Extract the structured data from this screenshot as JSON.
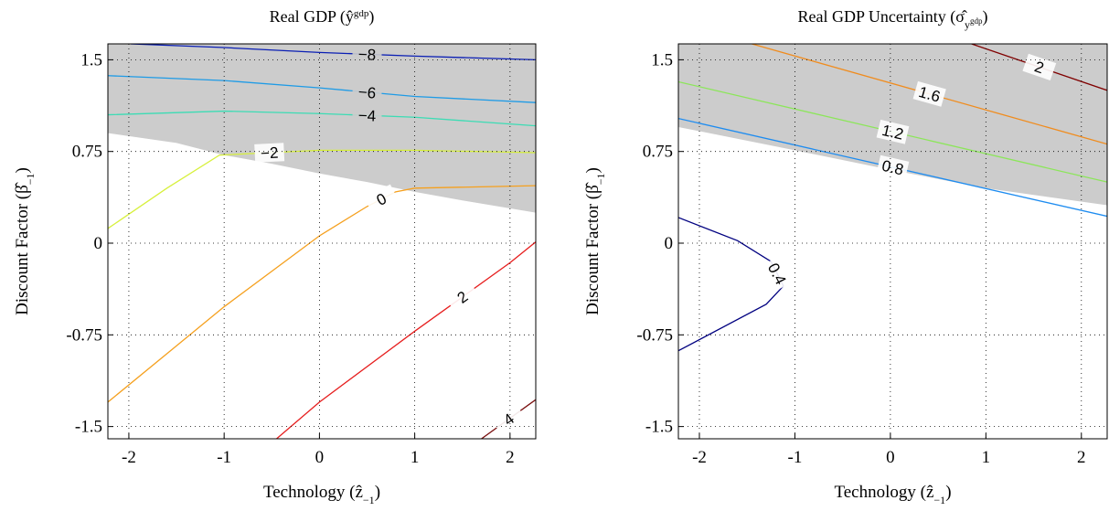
{
  "chart_data": [
    {
      "type": "contour",
      "title": [
        {
          "text": "Real GDP (ŷ"
        },
        {
          "text": "gdp",
          "sup": true
        },
        {
          "text": ")"
        }
      ],
      "xlabel": [
        {
          "text": "Technology (ẑ"
        },
        {
          "text": "−1",
          "sub": true
        },
        {
          "text": ")"
        }
      ],
      "ylabel": [
        {
          "text": "Discount Factor (β̂"
        },
        {
          "text": "−1",
          "sub": true
        },
        {
          "text": ")"
        }
      ],
      "xlim": [
        -2.22,
        2.27
      ],
      "ylim": [
        -1.6,
        1.63
      ],
      "xticks": [
        -2,
        -1,
        0,
        1,
        2
      ],
      "yticks": [
        -1.5,
        -0.75,
        0,
        0.75,
        1.5
      ],
      "grid": true,
      "shade": {
        "color": "#cccccc",
        "x": [
          -2.22,
          -1.5,
          -1,
          -0.5,
          0,
          0.5,
          1,
          1.5,
          2.27
        ],
        "y": [
          0.9,
          0.82,
          0.72,
          0.65,
          0.57,
          0.5,
          0.42,
          0.35,
          0.25
        ]
      },
      "series": [
        {
          "level": -8,
          "label": "−8",
          "color": "#0a1eb4",
          "x": [
            -1.98,
            -1,
            0,
            1,
            2.27
          ],
          "y": [
            1.63,
            1.6,
            1.56,
            1.53,
            1.5
          ]
        },
        {
          "level": -6,
          "label": "−6",
          "color": "#1e9be6",
          "x": [
            -2.22,
            -1,
            0,
            1,
            2.27
          ],
          "y": [
            1.37,
            1.33,
            1.27,
            1.2,
            1.15
          ]
        },
        {
          "level": -4,
          "label": "−4",
          "color": "#3cdcb4",
          "x": [
            -2.22,
            -1,
            0,
            1,
            2.27
          ],
          "y": [
            1.05,
            1.08,
            1.06,
            1.03,
            0.96
          ]
        },
        {
          "level": -2,
          "label": "−2",
          "color": "#d7f03c",
          "x": [
            -2.22,
            -1.6,
            -1.05,
            0,
            1,
            2.27
          ],
          "y": [
            0.12,
            0.45,
            0.72,
            0.76,
            0.76,
            0.74
          ]
        },
        {
          "level": 0,
          "color": "#f5a01e",
          "x": [
            -2.22,
            -1,
            0,
            0.5,
            0.8,
            1,
            2.27
          ],
          "y": [
            -1.3,
            -0.52,
            0.06,
            0.3,
            0.42,
            0.45,
            0.47
          ]
        },
        {
          "level": 2,
          "color": "#e61e1e",
          "x": [
            -0.45,
            0,
            1,
            2,
            2.27
          ],
          "y": [
            -1.6,
            -1.3,
            -0.72,
            -0.16,
            0.01
          ]
        },
        {
          "level": 4,
          "color": "#7a0f0f",
          "x": [
            1.7,
            2.27
          ],
          "y": [
            -1.6,
            -1.28
          ]
        }
      ]
    },
    {
      "type": "contour",
      "title": [
        {
          "text": "Real GDP Uncertainty (σ̂"
        },
        {
          "text": "y",
          "sub": true
        },
        {
          "text": "gdp",
          "subsup": true
        },
        {
          "text": ")"
        }
      ],
      "xlabel": [
        {
          "text": "Technology (ẑ"
        },
        {
          "text": "−1",
          "sub": true
        },
        {
          "text": ")"
        }
      ],
      "ylabel": [
        {
          "text": "Discount Factor (β̂"
        },
        {
          "text": "−1",
          "sub": true
        },
        {
          "text": ")"
        }
      ],
      "xlim": [
        -2.22,
        2.27
      ],
      "ylim": [
        -1.6,
        1.63
      ],
      "xticks": [
        -2,
        -1,
        0,
        1,
        2
      ],
      "yticks": [
        -1.5,
        -0.75,
        0,
        0.75,
        1.5
      ],
      "grid": true,
      "shade": {
        "color": "#cccccc",
        "x": [
          -2.22,
          -1,
          0,
          1,
          2.27
        ],
        "y": [
          0.95,
          0.76,
          0.6,
          0.45,
          0.31
        ]
      },
      "series": [
        {
          "level": 2,
          "color": "#800000",
          "x": [
            0.85,
            2.27
          ],
          "y": [
            1.63,
            1.25
          ]
        },
        {
          "level": 1.6,
          "color": "#f08c1e",
          "x": [
            -1.45,
            2.27
          ],
          "y": [
            1.63,
            0.81
          ]
        },
        {
          "level": 1.2,
          "color": "#8ce65a",
          "x": [
            -2.22,
            2.27
          ],
          "y": [
            1.32,
            0.5
          ]
        },
        {
          "level": 0.8,
          "color": "#1e8cf0",
          "x": [
            -2.22,
            2.27
          ],
          "y": [
            1.02,
            0.22
          ]
        },
        {
          "level": 0.4,
          "color": "#000080",
          "x": [
            -2.22,
            -1.6,
            -1.25,
            -1.12,
            -1.3,
            -2.22
          ],
          "y": [
            0.21,
            0.02,
            -0.15,
            -0.35,
            -0.5,
            -0.88
          ]
        }
      ]
    }
  ]
}
